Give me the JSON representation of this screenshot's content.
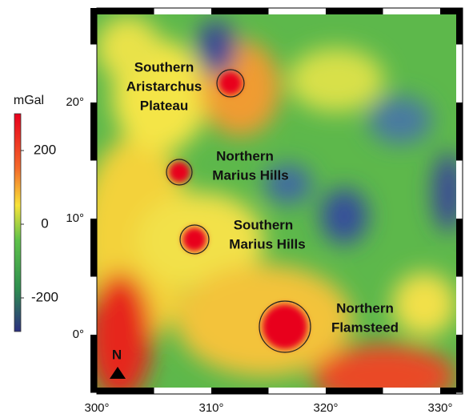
{
  "colorbar": {
    "title": "mGal",
    "ticks": [
      200,
      0,
      -200
    ]
  },
  "x_axis": {
    "ticks": [
      {
        "value": 300,
        "label": "300°"
      },
      {
        "value": 310,
        "label": "310°"
      },
      {
        "value": 320,
        "label": "320°"
      },
      {
        "value": 330,
        "label": "330°"
      }
    ]
  },
  "y_axis": {
    "ticks": [
      {
        "value": 0,
        "label": "0°"
      },
      {
        "value": 10,
        "label": "10°"
      },
      {
        "value": 20,
        "label": "20°"
      }
    ]
  },
  "north_label": "N",
  "features": [
    {
      "lines": [
        "Southern",
        "Aristarchus",
        "Plateau"
      ]
    },
    {
      "lines": [
        "Northern",
        "Marius Hills"
      ]
    },
    {
      "lines": [
        "Southern",
        "Marius Hills"
      ]
    },
    {
      "lines": [
        "Northern",
        "Flamsteed"
      ]
    }
  ]
}
